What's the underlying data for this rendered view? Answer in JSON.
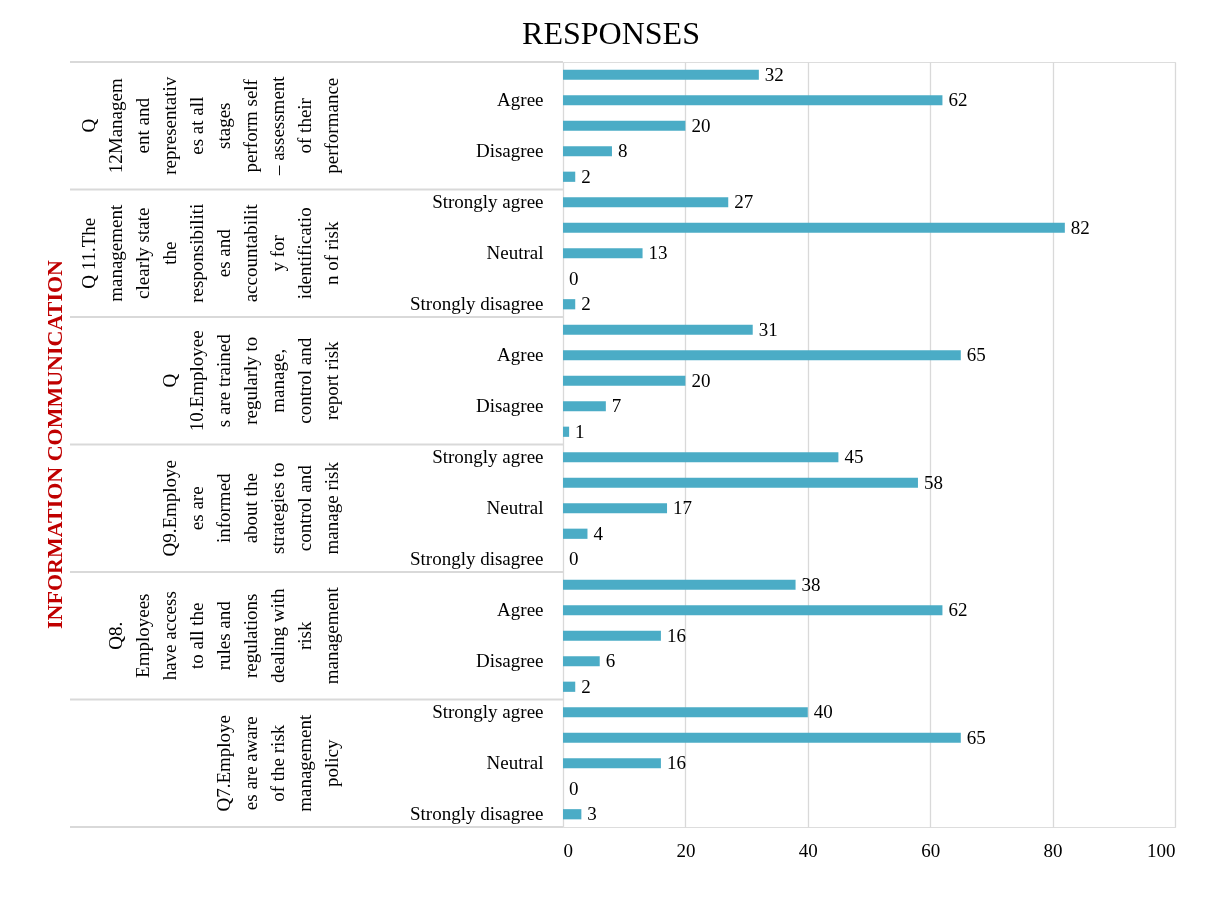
{
  "chart_data": {
    "type": "bar",
    "orientation": "horizontal",
    "title": "RESPONSES",
    "categories": [
      null,
      "Agree",
      null,
      "Disagree",
      null,
      "Strongly agree",
      null,
      "Neutral",
      null,
      "Strongly disagree",
      null,
      "Agree",
      null,
      "Disagree",
      null,
      "Strongly agree",
      null,
      "Neutral",
      null,
      "Strongly disagree",
      null,
      "Agree",
      null,
      "Disagree",
      null,
      "Strongly agree",
      null,
      "Neutral",
      null,
      "Strongly disagree"
    ],
    "values": [
      32,
      62,
      20,
      8,
      2,
      27,
      82,
      13,
      0,
      2,
      31,
      65,
      20,
      7,
      1,
      45,
      58,
      17,
      4,
      0,
      38,
      62,
      16,
      6,
      2,
      40,
      65,
      16,
      0,
      3
    ],
    "color": "#4bacc6",
    "data_labels": true,
    "xlim": [
      0,
      100
    ],
    "xticks": [
      0,
      20,
      40,
      60,
      80,
      100
    ],
    "grid": "x",
    "annotations": [
      "INFORMATION COMMUNICATION",
      "Q\n12Managem\nent and\nrepresentativ\nes at all\nstages\nperform self\n– assessment\nof their\nperformance",
      "Q 11.The\nmanagement\nclearly state\nthe\nresponsibiliti\nes and\naccountabilit\ny for\nidentificatio\nn of risk",
      "Q\n10.Employee\ns are trained\nregularly to\nmanage,\ncontrol and\nreport risk",
      "Q9.Employe\nes are\ninformed\nabout the\nstrategies to\ncontrol and\nmanage risk",
      "Q8.\nEmployees\nhave access\nto all the\nrules and\nregulations\ndealing with\nrisk\nmanagement",
      "Q7.Employe\nes are aware\nof the risk\nmanagement\npolicy"
    ]
  }
}
